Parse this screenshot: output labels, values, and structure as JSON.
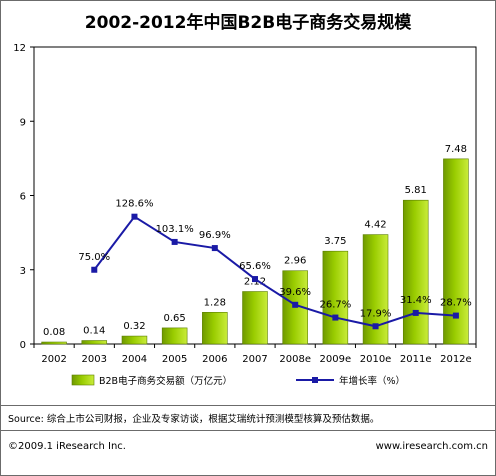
{
  "title": "2002-2012年中国B2B电子商务交易规模",
  "source": "Source: 综合上市公司财报，企业及专家访谈，根据艾瑞统计预测模型核算及预估数据。",
  "copyright": "©2009.1 iResearch Inc.",
  "website": "www.iresearch.com.cn",
  "chart_data": {
    "type": "bar",
    "title": "2002-2012年中国B2B电子商务交易规模",
    "categories": [
      "2002",
      "2003",
      "2004",
      "2005",
      "2006",
      "2007",
      "2008e",
      "2009e",
      "2010e",
      "2011e",
      "2012e"
    ],
    "ylim": [
      0,
      12
    ],
    "yticks": [
      0,
      3,
      6,
      9,
      12
    ],
    "grid": false,
    "legend_position": "bottom",
    "colors": {
      "bar_fill": "#99cc00",
      "line": "#1a1aa6"
    },
    "series": [
      {
        "name": "B2B电子商务交易额（万亿元）",
        "type": "bar",
        "values": [
          0.08,
          0.14,
          0.32,
          0.65,
          1.28,
          2.12,
          2.96,
          3.75,
          4.42,
          5.81,
          7.48
        ],
        "labels": [
          "0.08",
          "0.14",
          "0.32",
          "0.65",
          "1.28",
          "2.12",
          "2.96",
          "3.75",
          "4.42",
          "5.81",
          "7.48"
        ]
      },
      {
        "name": "年增长率（%）",
        "type": "line",
        "values": [
          null,
          75.0,
          128.6,
          103.1,
          96.9,
          65.6,
          39.6,
          26.7,
          17.9,
          31.4,
          28.7
        ],
        "labels": [
          "",
          "75.0%",
          "128.6%",
          "103.1%",
          "96.9%",
          "65.6%",
          "39.6%",
          "26.7%",
          "17.9%",
          "31.4%",
          "28.7%"
        ]
      }
    ]
  }
}
